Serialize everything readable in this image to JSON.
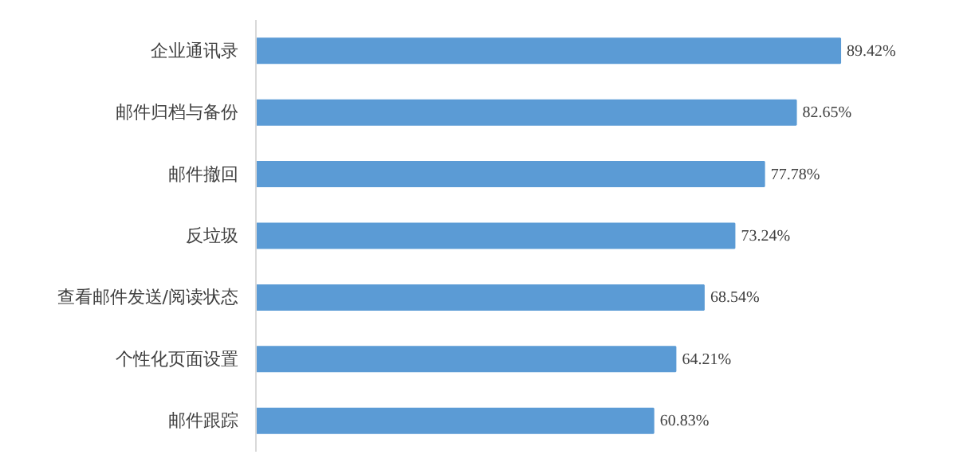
{
  "chart_data": {
    "type": "bar",
    "orientation": "horizontal",
    "categories": [
      "企业通讯录",
      "邮件归档与备份",
      "邮件撤回",
      "反垃圾",
      "查看邮件发送/阅读状态",
      "个性化页面设置",
      "邮件跟踪"
    ],
    "values": [
      89.42,
      82.65,
      77.78,
      73.24,
      68.54,
      64.21,
      60.83
    ],
    "value_labels": [
      "89.42%",
      "82.65%",
      "77.78%",
      "73.24%",
      "68.54%",
      "64.21%",
      "60.83%"
    ],
    "color": "#5b9bd5",
    "tick_labels": "y"
  }
}
